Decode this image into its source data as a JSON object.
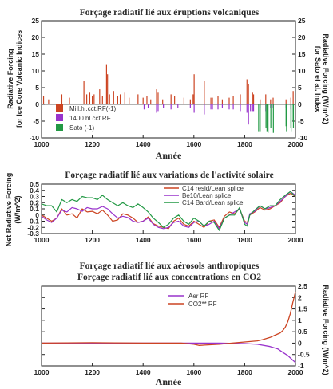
{
  "chart_data": [
    {
      "type": "bar",
      "title": "Forçage radiatif lié aux éruptions volcaniques",
      "xlabel": "Année",
      "ylabel_left": [
        "Radiative Forcing",
        "for Ice Core Volcanic Indices"
      ],
      "ylabel_right": [
        "Radiative Forcing (W/m^2)",
        "for Sato et al. Index"
      ],
      "xlim": [
        1000,
        2000
      ],
      "ylim_left": [
        -10,
        25
      ],
      "ylim_right": [
        -10,
        25
      ],
      "yticks_left": [
        -10,
        -5,
        0,
        5,
        10,
        15,
        20,
        25
      ],
      "yticks_right": [
        -10,
        -5,
        0,
        5,
        10,
        15,
        20,
        25
      ],
      "xticks": [
        1000,
        1200,
        1400,
        1600,
        1800,
        2000
      ],
      "legend": "bottom-left",
      "colors": {
        "Mill.hl.cct.RF(-1)": "#cc4422",
        "1400.hl.cct.RF": "#9933cc",
        "Sato (-1)": "#229944"
      },
      "series": [
        {
          "name": "Mill.hl.cct.RF(-1)",
          "x": [
            1008,
            1028,
            1080,
            1110,
            1167,
            1178,
            1190,
            1200,
            1207,
            1229,
            1240,
            1256,
            1260,
            1268,
            1284,
            1300,
            1310,
            1328,
            1345,
            1380,
            1400,
            1415,
            1430,
            1453,
            1459,
            1477,
            1510,
            1524,
            1561,
            1586,
            1597,
            1601,
            1641,
            1667,
            1673,
            1695,
            1712,
            1739,
            1755,
            1783,
            1809,
            1815,
            1831,
            1835,
            1861,
            1883,
            1902,
            1912,
            1963,
            1982,
            1991
          ],
          "values": [
            2.5,
            1.5,
            3,
            2,
            7,
            3,
            3.5,
            2.5,
            3,
            4.5,
            2.5,
            12,
            9,
            3,
            4,
            2.5,
            3,
            3.5,
            2,
            3,
            2,
            2.5,
            1.5,
            4.5,
            3.5,
            1.5,
            3,
            2.5,
            2,
            1.5,
            3,
            9,
            7,
            2,
            2,
            2.5,
            1.5,
            2,
            2.5,
            3,
            7.5,
            6,
            3.5,
            3,
            1.5,
            3,
            1.5,
            2,
            1.5,
            2,
            4
          ]
        },
        {
          "name": "1400.hl.cct.RF",
          "x": [
            1404,
            1420,
            1453,
            1459,
            1480,
            1510,
            1537,
            1586,
            1601,
            1641,
            1667,
            1673,
            1695,
            1712,
            1739,
            1755,
            1783,
            1809,
            1815,
            1823,
            1831,
            1835,
            1861,
            1883,
            1902,
            1912,
            1963,
            1982,
            1991
          ],
          "values": [
            -1.5,
            -1,
            -2.5,
            -2,
            -1,
            -1.5,
            -1,
            -1,
            -2.5,
            -3,
            -1.5,
            -1.5,
            -1.5,
            -1,
            -1.5,
            -1.5,
            -2,
            -2.5,
            -6,
            -2,
            -2,
            -2,
            -1,
            -2,
            -1,
            -1,
            -1,
            -1.5,
            -2.5
          ]
        },
        {
          "name": "Sato (-1)",
          "x": [
            1855,
            1861,
            1884,
            1888,
            1892,
            1903,
            1913,
            1963,
            1965,
            1982,
            1983,
            1991,
            1992
          ],
          "values": [
            -8,
            -8,
            -7,
            -8,
            -8.5,
            -7,
            -8.5,
            -6.5,
            -8,
            -7,
            -8,
            -5,
            -7
          ]
        }
      ]
    },
    {
      "type": "line",
      "title": "Forçage radiatif lié aux variations de l'activité solaire",
      "xlabel": "",
      "ylabel": [
        "Net Radiative Forcing",
        "(W/m^2)"
      ],
      "xlim": [
        1000,
        2000
      ],
      "ylim": [
        -0.3,
        0.5
      ],
      "yticks": [
        -0.3,
        -0.2,
        -0.1,
        0.0,
        0.1,
        0.2,
        0.3,
        0.4,
        0.5
      ],
      "xticks": [
        1000,
        1200,
        1400,
        1600,
        1800,
        2000
      ],
      "legend": "top-right",
      "colors": {
        "C14 resid/Lean splice": "#cc4422",
        "Be10/Lean splice": "#9933cc",
        "C14 Bard/Lean splice": "#229944"
      },
      "series": [
        {
          "name": "C14 resid/Lean splice",
          "x": [
            1000,
            1020,
            1040,
            1060,
            1080,
            1100,
            1120,
            1140,
            1160,
            1180,
            1200,
            1220,
            1240,
            1260,
            1280,
            1300,
            1320,
            1340,
            1360,
            1380,
            1400,
            1420,
            1440,
            1460,
            1480,
            1500,
            1520,
            1540,
            1560,
            1580,
            1600,
            1620,
            1640,
            1660,
            1680,
            1700,
            1720,
            1740,
            1760,
            1780,
            1800,
            1810,
            1820,
            1840,
            1860,
            1880,
            1900,
            1920,
            1940,
            1960,
            1980,
            2000
          ],
          "values": [
            0.0,
            -0.05,
            -0.1,
            -0.05,
            0.1,
            0.0,
            0.02,
            -0.05,
            0.1,
            0.05,
            0.06,
            0.02,
            0.08,
            0.0,
            -0.1,
            -0.08,
            0.02,
            0.0,
            -0.05,
            -0.12,
            -0.1,
            -0.03,
            -0.14,
            -0.18,
            -0.2,
            -0.22,
            -0.1,
            -0.05,
            -0.15,
            -0.18,
            -0.1,
            -0.15,
            -0.2,
            -0.1,
            -0.08,
            -0.2,
            -0.02,
            0.05,
            0.02,
            0.1,
            -0.1,
            -0.12,
            0.0,
            0.05,
            0.12,
            0.08,
            0.1,
            0.15,
            0.2,
            0.3,
            0.35,
            0.3
          ]
        },
        {
          "name": "Be10/Lean splice",
          "x": [
            1000,
            1020,
            1040,
            1060,
            1080,
            1100,
            1120,
            1140,
            1160,
            1180,
            1200,
            1220,
            1240,
            1260,
            1280,
            1300,
            1320,
            1340,
            1360,
            1380,
            1400,
            1420,
            1440,
            1460,
            1480,
            1500,
            1520,
            1540,
            1560,
            1580,
            1600,
            1620,
            1640,
            1660,
            1680,
            1700,
            1720,
            1740,
            1760,
            1780,
            1800,
            1810,
            1820,
            1840,
            1860,
            1880,
            1900,
            1920,
            1940,
            1960,
            1980,
            2000
          ],
          "values": [
            -0.02,
            -0.08,
            -0.12,
            -0.05,
            0.08,
            0.05,
            0.12,
            0.1,
            0.06,
            0.12,
            0.1,
            0.1,
            0.14,
            0.1,
            0.02,
            -0.05,
            -0.02,
            -0.04,
            -0.1,
            -0.12,
            -0.1,
            -0.05,
            -0.15,
            -0.2,
            -0.22,
            -0.2,
            -0.12,
            -0.1,
            -0.18,
            -0.2,
            -0.12,
            -0.1,
            -0.18,
            -0.15,
            -0.1,
            -0.22,
            -0.05,
            0.0,
            0.05,
            0.1,
            -0.12,
            -0.15,
            0.02,
            0.06,
            0.15,
            0.1,
            0.12,
            0.15,
            0.22,
            0.3,
            0.38,
            0.32
          ]
        },
        {
          "name": "C14 Bard/Lean splice",
          "x": [
            1000,
            1020,
            1040,
            1060,
            1080,
            1100,
            1120,
            1140,
            1160,
            1180,
            1200,
            1220,
            1240,
            1260,
            1280,
            1300,
            1320,
            1340,
            1360,
            1380,
            1400,
            1420,
            1440,
            1460,
            1480,
            1500,
            1520,
            1540,
            1560,
            1580,
            1600,
            1620,
            1640,
            1660,
            1680,
            1700,
            1720,
            1740,
            1760,
            1780,
            1800,
            1810,
            1820,
            1840,
            1860,
            1880,
            1900,
            1920,
            1940,
            1960,
            1980,
            2000
          ],
          "values": [
            0.18,
            0.15,
            0.15,
            0.05,
            0.25,
            0.2,
            0.25,
            0.22,
            0.3,
            0.28,
            0.28,
            0.25,
            0.32,
            0.25,
            0.2,
            0.15,
            0.2,
            0.15,
            0.12,
            0.18,
            0.12,
            0.05,
            -0.05,
            -0.12,
            -0.2,
            -0.15,
            -0.05,
            0.0,
            -0.1,
            -0.15,
            -0.05,
            -0.1,
            -0.18,
            -0.1,
            -0.12,
            -0.25,
            -0.05,
            0.0,
            0.0,
            0.12,
            -0.15,
            -0.18,
            0.0,
            0.08,
            0.15,
            0.1,
            0.15,
            0.15,
            0.25,
            0.32,
            0.38,
            0.3
          ]
        }
      ]
    },
    {
      "type": "line",
      "title": [
        "Forçage radiatif lié aux aérosols anthropiques",
        "Forçage radiatif lié aux concentrations en CO2"
      ],
      "xlabel": "Année",
      "ylabel_right": [
        "Radiative Forcing (W/m^2)"
      ],
      "xlim": [
        1000,
        2000
      ],
      "ylim": [
        -1.0,
        2.5
      ],
      "yticks_right": [
        -1.0,
        -0.5,
        0.0,
        0.5,
        1.0,
        1.5,
        2.0,
        2.5
      ],
      "xticks": [
        1000,
        1200,
        1400,
        1600,
        1800,
        2000
      ],
      "legend": "top-center",
      "colors": {
        "Aer RF": "#9933cc",
        "CO2** RF": "#cc4422"
      },
      "series": [
        {
          "name": "Aer RF",
          "x": [
            1000,
            1200,
            1400,
            1600,
            1700,
            1800,
            1850,
            1900,
            1930,
            1950,
            1970,
            1990,
            2000
          ],
          "values": [
            0.0,
            0.0,
            0.0,
            0.0,
            0.0,
            -0.02,
            -0.05,
            -0.15,
            -0.25,
            -0.4,
            -0.55,
            -0.75,
            -0.85
          ]
        },
        {
          "name": "CO2** RF",
          "x": [
            1000,
            1200,
            1400,
            1550,
            1600,
            1620,
            1700,
            1750,
            1800,
            1850,
            1870,
            1900,
            1920,
            1940,
            1950,
            1960,
            1970,
            1980,
            1990,
            2000
          ],
          "values": [
            0.0,
            0.02,
            0.0,
            0.0,
            -0.05,
            -0.1,
            -0.05,
            0.0,
            0.05,
            0.1,
            0.15,
            0.25,
            0.35,
            0.45,
            0.55,
            0.7,
            0.95,
            1.3,
            1.8,
            2.25
          ]
        }
      ]
    }
  ]
}
